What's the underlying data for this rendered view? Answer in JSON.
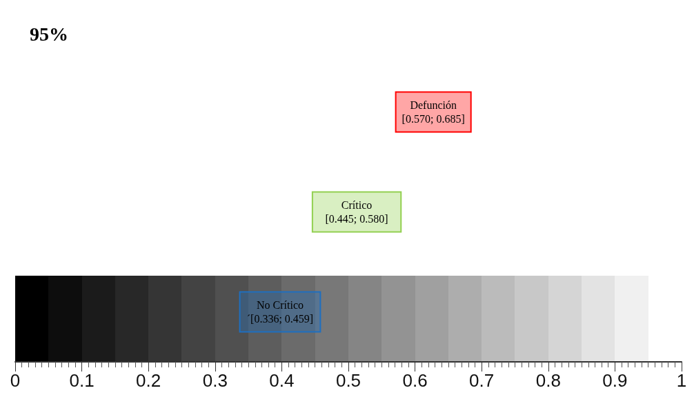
{
  "chart_data": {
    "type": "bar",
    "orientation": "horizontal",
    "title": "95%",
    "categories": [
      "Defunción",
      "Crítico",
      "No Crítico"
    ],
    "base": [
      0.57,
      0.445,
      0.336
    ],
    "values": [
      0.115,
      0.135,
      0.123
    ],
    "colors": [
      "#ff0000",
      "#92d050",
      "#1f6fbf"
    ],
    "value_labels": [
      "[0.570; 0.685]",
      "[0.445; 0.580]",
      "´[0.336; 0.459]"
    ],
    "xlim": [
      0,
      1
    ],
    "xticks": [
      0,
      0.1,
      0.2,
      0.3,
      0.4,
      0.5,
      0.6,
      0.7,
      0.8,
      0.9,
      1
    ],
    "grid": false
  }
}
